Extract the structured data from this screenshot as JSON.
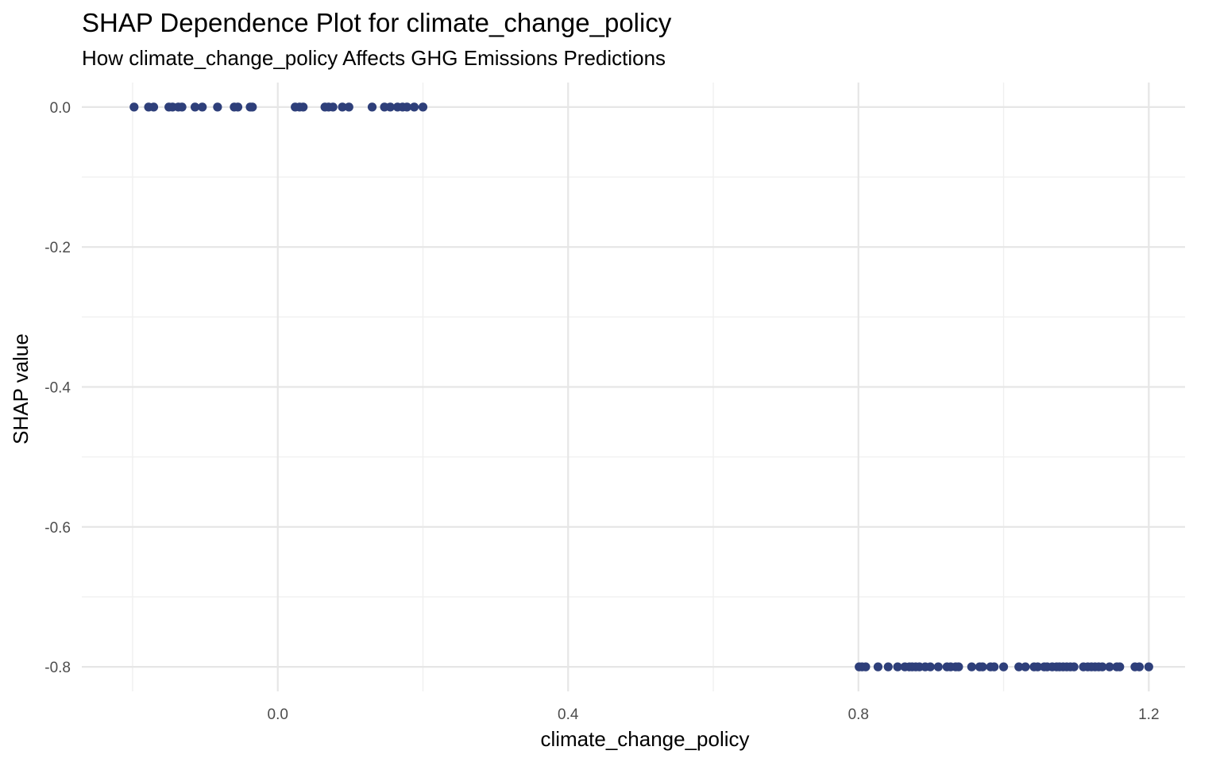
{
  "chart_data": {
    "type": "scatter",
    "title": "SHAP Dependence Plot for climate_change_policy",
    "subtitle": "How climate_change_policy Affects GHG Emissions Predictions",
    "xlabel": "climate_change_policy",
    "ylabel": "SHAP value",
    "xlim": [
      -0.27,
      1.25
    ],
    "ylim": [
      -0.835,
      0.035
    ],
    "x_ticks": [
      0.0,
      0.4,
      0.8,
      1.2
    ],
    "x_tick_labels": [
      "0.0",
      "0.4",
      "0.8",
      "1.2"
    ],
    "x_minor_ticks": [
      -0.2,
      0.2,
      0.6,
      1.0
    ],
    "y_ticks": [
      0.0,
      -0.2,
      -0.4,
      -0.6,
      -0.8
    ],
    "y_tick_labels": [
      "0.0",
      "-0.2",
      "-0.4",
      "-0.6",
      "-0.8"
    ],
    "y_minor_ticks": [
      -0.1,
      -0.3,
      -0.5,
      -0.7
    ],
    "grid": true,
    "point_color": "#2e3f7a",
    "points": [
      {
        "x": -0.198,
        "y": 0.0
      },
      {
        "x": -0.178,
        "y": 0.0
      },
      {
        "x": -0.171,
        "y": 0.0
      },
      {
        "x": -0.15,
        "y": 0.0
      },
      {
        "x": -0.145,
        "y": 0.0
      },
      {
        "x": -0.137,
        "y": 0.0
      },
      {
        "x": -0.132,
        "y": 0.0
      },
      {
        "x": -0.114,
        "y": 0.0
      },
      {
        "x": -0.104,
        "y": 0.0
      },
      {
        "x": -0.083,
        "y": 0.0
      },
      {
        "x": -0.06,
        "y": 0.0
      },
      {
        "x": -0.055,
        "y": 0.0
      },
      {
        "x": -0.038,
        "y": 0.0
      },
      {
        "x": -0.035,
        "y": 0.0
      },
      {
        "x": 0.024,
        "y": 0.0
      },
      {
        "x": 0.03,
        "y": 0.0
      },
      {
        "x": 0.035,
        "y": 0.0
      },
      {
        "x": 0.065,
        "y": 0.0
      },
      {
        "x": 0.07,
        "y": 0.0
      },
      {
        "x": 0.076,
        "y": 0.0
      },
      {
        "x": 0.089,
        "y": 0.0
      },
      {
        "x": 0.098,
        "y": 0.0
      },
      {
        "x": 0.13,
        "y": 0.0
      },
      {
        "x": 0.147,
        "y": 0.0
      },
      {
        "x": 0.155,
        "y": 0.0
      },
      {
        "x": 0.165,
        "y": 0.0
      },
      {
        "x": 0.172,
        "y": 0.0
      },
      {
        "x": 0.178,
        "y": 0.0
      },
      {
        "x": 0.188,
        "y": 0.0
      },
      {
        "x": 0.2,
        "y": 0.0
      },
      {
        "x": 0.801,
        "y": -0.8
      },
      {
        "x": 0.805,
        "y": -0.8
      },
      {
        "x": 0.81,
        "y": -0.8
      },
      {
        "x": 0.827,
        "y": -0.8
      },
      {
        "x": 0.841,
        "y": -0.8
      },
      {
        "x": 0.854,
        "y": -0.8
      },
      {
        "x": 0.864,
        "y": -0.8
      },
      {
        "x": 0.87,
        "y": -0.8
      },
      {
        "x": 0.874,
        "y": -0.8
      },
      {
        "x": 0.879,
        "y": -0.8
      },
      {
        "x": 0.884,
        "y": -0.8
      },
      {
        "x": 0.892,
        "y": -0.8
      },
      {
        "x": 0.899,
        "y": -0.8
      },
      {
        "x": 0.91,
        "y": -0.8
      },
      {
        "x": 0.922,
        "y": -0.8
      },
      {
        "x": 0.927,
        "y": -0.8
      },
      {
        "x": 0.934,
        "y": -0.8
      },
      {
        "x": 0.938,
        "y": -0.8
      },
      {
        "x": 0.956,
        "y": -0.8
      },
      {
        "x": 0.967,
        "y": -0.8
      },
      {
        "x": 0.971,
        "y": -0.8
      },
      {
        "x": 0.982,
        "y": -0.8
      },
      {
        "x": 0.987,
        "y": -0.8
      },
      {
        "x": 1.0,
        "y": -0.8
      },
      {
        "x": 1.021,
        "y": -0.8
      },
      {
        "x": 1.03,
        "y": -0.8
      },
      {
        "x": 1.042,
        "y": -0.8
      },
      {
        "x": 1.047,
        "y": -0.8
      },
      {
        "x": 1.056,
        "y": -0.8
      },
      {
        "x": 1.06,
        "y": -0.8
      },
      {
        "x": 1.067,
        "y": -0.8
      },
      {
        "x": 1.073,
        "y": -0.8
      },
      {
        "x": 1.077,
        "y": -0.8
      },
      {
        "x": 1.082,
        "y": -0.8
      },
      {
        "x": 1.087,
        "y": -0.8
      },
      {
        "x": 1.092,
        "y": -0.8
      },
      {
        "x": 1.097,
        "y": -0.8
      },
      {
        "x": 1.11,
        "y": -0.8
      },
      {
        "x": 1.116,
        "y": -0.8
      },
      {
        "x": 1.121,
        "y": -0.8
      },
      {
        "x": 1.126,
        "y": -0.8
      },
      {
        "x": 1.131,
        "y": -0.8
      },
      {
        "x": 1.136,
        "y": -0.8
      },
      {
        "x": 1.146,
        "y": -0.8
      },
      {
        "x": 1.156,
        "y": -0.8
      },
      {
        "x": 1.16,
        "y": -0.8
      },
      {
        "x": 1.181,
        "y": -0.8
      },
      {
        "x": 1.187,
        "y": -0.8
      },
      {
        "x": 1.2,
        "y": -0.8
      }
    ]
  }
}
